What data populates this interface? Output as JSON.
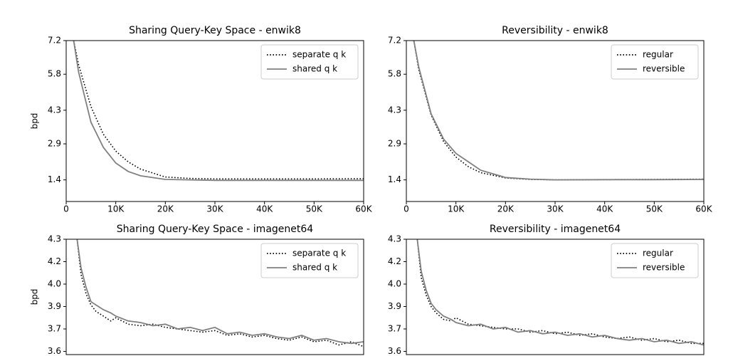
{
  "chart_data": [
    {
      "type": "line",
      "title": "Sharing Query-Key Space - enwik8",
      "ylabel": "bpd",
      "x": [
        1500,
        2500,
        5000,
        7500,
        10000,
        12500,
        15000,
        20000,
        25000,
        30000,
        40000,
        50000,
        60000
      ],
      "series": [
        {
          "name": "separate q k",
          "color": "#000000",
          "linestyle": "dotted",
          "values": [
            7.2,
            6.2,
            4.45,
            3.3,
            2.6,
            2.15,
            1.85,
            1.52,
            1.46,
            1.44,
            1.44,
            1.44,
            1.45
          ]
        },
        {
          "name": "shared q k",
          "color": "#808080",
          "linestyle": "solid",
          "values": [
            7.2,
            5.9,
            3.8,
            2.75,
            2.1,
            1.75,
            1.57,
            1.42,
            1.4,
            1.38,
            1.38,
            1.38,
            1.38
          ]
        }
      ],
      "xlim": [
        0,
        60000
      ],
      "xticks": [
        0,
        {
          "value": 10000,
          "label": "10K"
        },
        {
          "value": 20000,
          "label": "20K"
        },
        {
          "value": 30000,
          "label": "30K"
        },
        {
          "value": 40000,
          "label": "40K"
        },
        {
          "value": 50000,
          "label": "50K"
        },
        {
          "value": 60000,
          "label": "60K"
        }
      ],
      "ylim": [
        0.5,
        7.2
      ],
      "yticks": [
        1.4,
        2.9,
        4.3,
        5.8,
        7.2
      ],
      "legend": "upper right"
    },
    {
      "type": "line",
      "title": "Reversibility - enwik8",
      "x": [
        1500,
        2500,
        5000,
        7500,
        10000,
        12500,
        15000,
        20000,
        25000,
        30000,
        40000,
        50000,
        60000
      ],
      "series": [
        {
          "name": "regular",
          "color": "#000000",
          "linestyle": "dotted",
          "values": [
            7.2,
            6.0,
            4.1,
            3.0,
            2.35,
            1.95,
            1.7,
            1.48,
            1.42,
            1.4,
            1.41,
            1.42,
            1.43
          ]
        },
        {
          "name": "reversible",
          "color": "#808080",
          "linestyle": "solid",
          "values": [
            7.2,
            6.1,
            4.15,
            3.1,
            2.5,
            2.15,
            1.8,
            1.5,
            1.43,
            1.4,
            1.41,
            1.41,
            1.42
          ]
        }
      ],
      "xlim": [
        0,
        60000
      ],
      "xticks": [
        0,
        {
          "value": 10000,
          "label": "10K"
        },
        {
          "value": 20000,
          "label": "20K"
        },
        {
          "value": 30000,
          "label": "30K"
        },
        {
          "value": 40000,
          "label": "40K"
        },
        {
          "value": 50000,
          "label": "50K"
        },
        {
          "value": 60000,
          "label": "60K"
        }
      ],
      "ylim": [
        0.5,
        7.2
      ],
      "yticks": [
        1.4,
        2.9,
        4.3,
        5.8,
        7.2
      ],
      "legend": "upper right"
    },
    {
      "type": "line",
      "title": "Sharing Query-Key Space - imagenet64",
      "ylabel": "bpd",
      "x": [
        2200,
        3000,
        4000,
        5000,
        6000,
        7500,
        9000,
        10000,
        12500,
        15000,
        17500,
        20000,
        22500,
        25000,
        27500,
        30000,
        32500,
        35000,
        37500,
        40000,
        42500,
        45000,
        47500,
        50000,
        52500,
        55000,
        57500,
        60000
      ],
      "series": [
        {
          "name": "separate q k",
          "color": "#000000",
          "linestyle": "dotted",
          "values": [
            4.3,
            4.08,
            3.96,
            3.89,
            3.85,
            3.82,
            3.79,
            3.81,
            3.77,
            3.76,
            3.77,
            3.75,
            3.74,
            3.73,
            3.72,
            3.73,
            3.7,
            3.71,
            3.69,
            3.7,
            3.68,
            3.67,
            3.69,
            3.66,
            3.67,
            3.64,
            3.66,
            3.63
          ]
        },
        {
          "name": "shared q k",
          "color": "#808080",
          "linestyle": "solid",
          "values": [
            4.3,
            4.12,
            4.0,
            3.91,
            3.89,
            3.86,
            3.84,
            3.82,
            3.79,
            3.78,
            3.76,
            3.77,
            3.74,
            3.75,
            3.73,
            3.75,
            3.71,
            3.72,
            3.7,
            3.71,
            3.69,
            3.68,
            3.7,
            3.67,
            3.68,
            3.66,
            3.65,
            3.66
          ]
        }
      ],
      "xlim": [
        0,
        60000
      ],
      "ylim": [
        3.58,
        4.3
      ],
      "yticks": [
        {
          "value": 3.6,
          "label": "3.6"
        },
        {
          "value": 3.74,
          "label": "3.7"
        },
        {
          "value": 3.88,
          "label": "3.9"
        },
        {
          "value": 4.02,
          "label": "4.0"
        },
        {
          "value": 4.16,
          "label": "4.2"
        },
        4.3
      ],
      "legend": "upper right"
    },
    {
      "type": "line",
      "title": "Reversibility - imagenet64",
      "x": [
        2200,
        3000,
        4000,
        5000,
        6000,
        7500,
        9000,
        10000,
        12500,
        15000,
        17500,
        20000,
        22500,
        25000,
        27500,
        30000,
        32500,
        35000,
        37500,
        40000,
        42500,
        45000,
        47500,
        50000,
        52500,
        55000,
        57500,
        60000
      ],
      "series": [
        {
          "name": "regular",
          "color": "#000000",
          "linestyle": "dotted",
          "values": [
            4.3,
            4.06,
            3.95,
            3.88,
            3.84,
            3.8,
            3.79,
            3.81,
            3.77,
            3.76,
            3.75,
            3.74,
            3.74,
            3.72,
            3.73,
            3.71,
            3.72,
            3.7,
            3.71,
            3.69,
            3.68,
            3.69,
            3.67,
            3.68,
            3.66,
            3.67,
            3.65,
            3.65
          ]
        },
        {
          "name": "reversible",
          "color": "#808080",
          "linestyle": "solid",
          "values": [
            4.3,
            4.1,
            3.98,
            3.9,
            3.86,
            3.82,
            3.8,
            3.78,
            3.76,
            3.77,
            3.74,
            3.75,
            3.72,
            3.73,
            3.71,
            3.72,
            3.7,
            3.71,
            3.69,
            3.7,
            3.68,
            3.67,
            3.68,
            3.66,
            3.67,
            3.65,
            3.66,
            3.64
          ]
        }
      ],
      "xlim": [
        0,
        60000
      ],
      "ylim": [
        3.58,
        4.3
      ],
      "yticks": [
        {
          "value": 3.6,
          "label": "3.6"
        },
        {
          "value": 3.74,
          "label": "3.7"
        },
        {
          "value": 3.88,
          "label": "3.9"
        },
        {
          "value": 4.02,
          "label": "4.0"
        },
        {
          "value": 4.16,
          "label": "4.2"
        },
        4.3
      ],
      "legend": "upper right"
    }
  ]
}
